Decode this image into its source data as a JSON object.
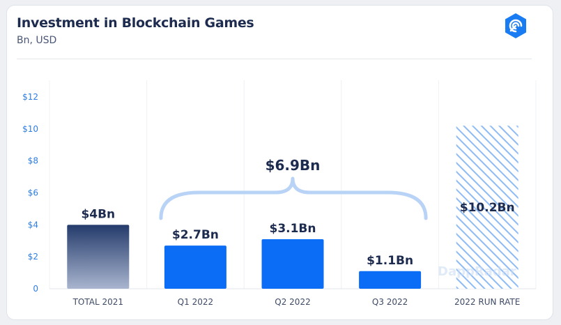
{
  "header": {
    "title": "Investment in Blockchain Games",
    "subtitle": "Bn, USD",
    "logo_icon": "dappradar-logo-icon"
  },
  "watermark": "DappRadar",
  "chart_data": {
    "type": "bar",
    "title": "Investment in Blockchain Games",
    "subtitle": "Bn, USD",
    "categories": [
      "TOTAL 2021",
      "Q1 2022",
      "Q2 2022",
      "Q3 2022",
      "2022 RUN RATE"
    ],
    "values": [
      4,
      2.7,
      3.1,
      1.1,
      10.2
    ],
    "data_labels": [
      "$4Bn",
      "$2.7Bn",
      "$3.1Bn",
      "$1.1Bn",
      "$10.2Bn"
    ],
    "bar_styles": [
      "gradient-navy",
      "solid-blue",
      "solid-blue",
      "solid-blue",
      "hatched-light-blue"
    ],
    "yticks": [
      0,
      2,
      4,
      6,
      8,
      10,
      12
    ],
    "ytick_labels": [
      "0",
      "$2",
      "$4",
      "$6",
      "$8",
      "$10",
      "$12"
    ],
    "ylim": [
      0,
      12
    ],
    "grid": "vertical",
    "xlabel": "",
    "ylabel": "",
    "annotation": {
      "text": "$6.9Bn",
      "spans": [
        "Q1 2022",
        "Q3 2022"
      ],
      "value": 6.9
    },
    "colors": {
      "solid": "#0b6cf5",
      "gradient_top": "#243b6b",
      "gradient_bottom": "#a9b5cf",
      "hatch": "#8fbbf5",
      "brace": "#b9d3f7",
      "tick": "#2e7de0"
    }
  }
}
